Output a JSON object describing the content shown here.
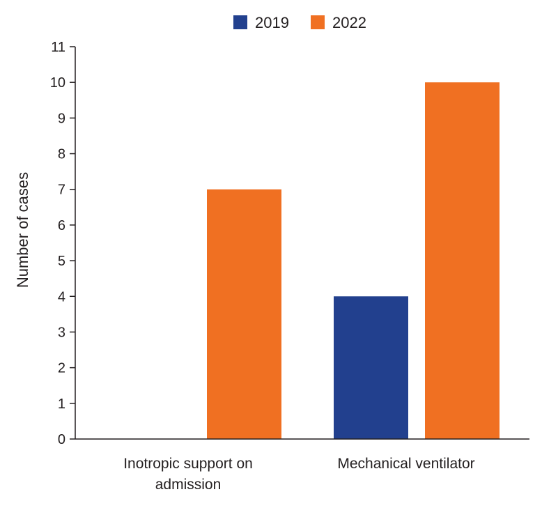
{
  "chart_data": {
    "type": "bar",
    "title": "",
    "xlabel": "",
    "ylabel": "Number of cases",
    "ylim": [
      0,
      11
    ],
    "yticks": [
      0,
      1,
      2,
      3,
      4,
      5,
      6,
      7,
      8,
      9,
      10,
      11
    ],
    "grid": false,
    "legend_position": "top-center",
    "categories": [
      [
        "Inotropic support on",
        "admission"
      ],
      [
        "Mechanical ventilator"
      ]
    ],
    "series": [
      {
        "name": "2019",
        "color": "#22408e",
        "values": [
          0,
          4
        ]
      },
      {
        "name": "2022",
        "color": "#f07022",
        "values": [
          7,
          10
        ]
      }
    ]
  }
}
